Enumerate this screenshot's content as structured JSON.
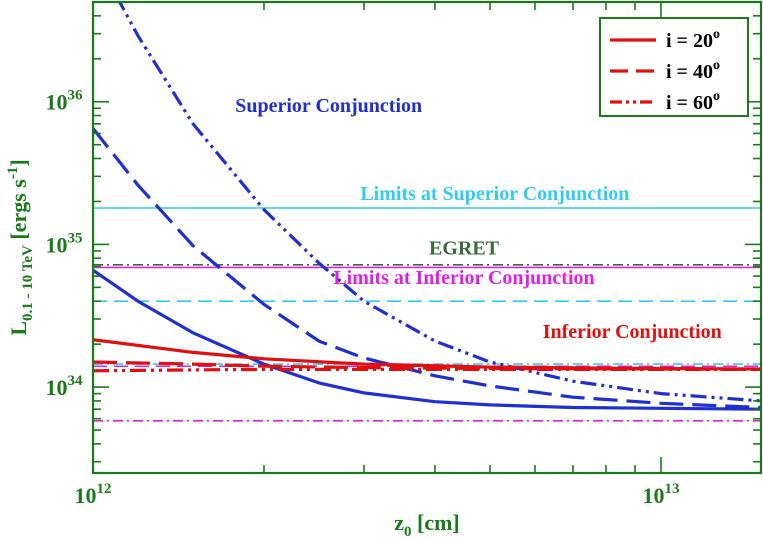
{
  "chart_data": {
    "type": "line",
    "x_scale": "log",
    "y_scale": "log",
    "xlim": [
      1000000000000.0,
      15000000000000.0
    ],
    "ylim": [
      2.5e+33,
      5e+36
    ],
    "xlabel": {
      "main": "z",
      "sub": "0",
      "rest": " [cm]"
    },
    "ylabel": {
      "main": "L",
      "sub": "0.1 - 10 TeV",
      "rest": " [ergs  s",
      "sup": "-1",
      "end": "]"
    },
    "x_ticks": [
      {
        "value": 1000000000000.0,
        "base": "10",
        "exp": "12"
      },
      {
        "value": 10000000000000.0,
        "base": "10",
        "exp": "13"
      }
    ],
    "y_ticks": [
      {
        "value": 1e+34,
        "base": "10",
        "exp": "34"
      },
      {
        "value": 1e+35,
        "base": "10",
        "exp": "35"
      },
      {
        "value": 1e+36,
        "base": "10",
        "exp": "36"
      }
    ],
    "colors": {
      "axes": "#1a7a1a",
      "superior": "#1f2fd0",
      "inferior": "#e01010",
      "limits_superior": "#33ccee",
      "limits_inferior": "#dd22dd",
      "egret": "#3a6a3a"
    },
    "legend": {
      "placement": "top-right",
      "entries": [
        {
          "base": "i = 20",
          "sup": "o",
          "dash": "solid"
        },
        {
          "base": "i = 40",
          "sup": "o",
          "dash": "dashed"
        },
        {
          "base": "i = 60",
          "sup": "o",
          "dash": "dashdotdot"
        }
      ]
    },
    "series": [
      {
        "group": "superior",
        "dash": "solid",
        "x": [
          1000000000000.0,
          1200000000000.0,
          1500000000000.0,
          2000000000000.0,
          2500000000000.0,
          3000000000000.0,
          4000000000000.0,
          5000000000000.0,
          7000000000000.0,
          10000000000000.0,
          15000000000000.0
        ],
        "y": [
          6.6e+34,
          4e+34,
          2.4e+34,
          1.45e+34,
          1.07e+34,
          9.1e+33,
          7.9e+33,
          7.5e+33,
          7.2e+33,
          7.1e+33,
          7e+33
        ]
      },
      {
        "group": "superior",
        "dash": "dashed",
        "x": [
          1000000000000.0,
          1200000000000.0,
          1500000000000.0,
          2000000000000.0,
          2500000000000.0,
          3000000000000.0,
          4000000000000.0,
          5000000000000.0,
          7000000000000.0,
          10000000000000.0,
          15000000000000.0
        ],
        "y": [
          6.5e+35,
          2.6e+35,
          9.8e+34,
          3.8e+34,
          2.1e+34,
          1.6e+34,
          1.2e+34,
          1.02e+34,
          8.5e+33,
          7.7e+33,
          7.2e+33
        ]
      },
      {
        "group": "superior",
        "dash": "dashdotdot",
        "x": [
          1100000000000.0,
          1200000000000.0,
          1500000000000.0,
          2000000000000.0,
          2500000000000.0,
          3000000000000.0,
          4000000000000.0,
          5000000000000.0,
          7000000000000.0,
          10000000000000.0,
          15000000000000.0
        ],
        "y": [
          5.5e+36,
          2.9e+36,
          7e+35,
          1.75e+35,
          7.4e+34,
          4e+34,
          2.1e+34,
          1.5e+34,
          1.1e+34,
          9e+33,
          8e+33
        ]
      },
      {
        "group": "inferior",
        "dash": "solid",
        "x": [
          1000000000000.0,
          1500000000000.0,
          2000000000000.0,
          3000000000000.0,
          5000000000000.0,
          10000000000000.0,
          15000000000000.0
        ],
        "y": [
          2.15e+34,
          1.75e+34,
          1.58e+34,
          1.45e+34,
          1.38e+34,
          1.35e+34,
          1.34e+34
        ]
      },
      {
        "group": "inferior",
        "dash": "dashed",
        "x": [
          1000000000000.0,
          1500000000000.0,
          2000000000000.0,
          3000000000000.0,
          5000000000000.0,
          10000000000000.0,
          15000000000000.0
        ],
        "y": [
          1.5e+34,
          1.45e+34,
          1.4e+34,
          1.37e+34,
          1.35e+34,
          1.34e+34,
          1.33e+34
        ]
      },
      {
        "group": "inferior",
        "dash": "dashdotdot",
        "x": [
          1000000000000.0,
          1500000000000.0,
          2000000000000.0,
          3000000000000.0,
          5000000000000.0,
          10000000000000.0,
          15000000000000.0
        ],
        "y": [
          1.3e+34,
          1.32e+34,
          1.33e+34,
          1.33e+34,
          1.33e+34,
          1.33e+34,
          1.33e+34
        ]
      }
    ],
    "hlines": [
      {
        "group": "limits_superior",
        "dash": "solid",
        "y": 1.8e+35
      },
      {
        "group": "limits_superior",
        "dash": "dashed",
        "y": 4e+34
      },
      {
        "group": "limits_superior",
        "dash": "dashdot",
        "y": 1.45e+34
      },
      {
        "group": "egret",
        "dash": "dashdot",
        "y": 7.2e+34
      },
      {
        "group": "limits_inferior",
        "dash": "solid",
        "y": 6.9e+34
      },
      {
        "group": "limits_inferior",
        "dash": "dashed",
        "y": 1.4e+34
      },
      {
        "group": "limits_inferior",
        "dash": "dashdot",
        "y": 5.8e+33
      }
    ],
    "annotations": [
      {
        "text": "Superior Conjunction",
        "group": "superior",
        "x": 2600000000000.0,
        "y": 8.5e+35
      },
      {
        "text": "Limits at Superior Conjunction",
        "group": "limits_superior",
        "x": 5100000000000.0,
        "y": 2.05e+35
      },
      {
        "text": "EGRET",
        "group": "egret",
        "x": 4500000000000.0,
        "y": 8.5e+34
      },
      {
        "text": "Limits at Inferior Conjunction",
        "group": "limits_inferior",
        "x": 4500000000000.0,
        "y": 5.3e+34
      },
      {
        "text": "Inferior Conjunction",
        "group": "inferior",
        "x": 8900000000000.0,
        "y": 2.2e+34
      }
    ]
  }
}
